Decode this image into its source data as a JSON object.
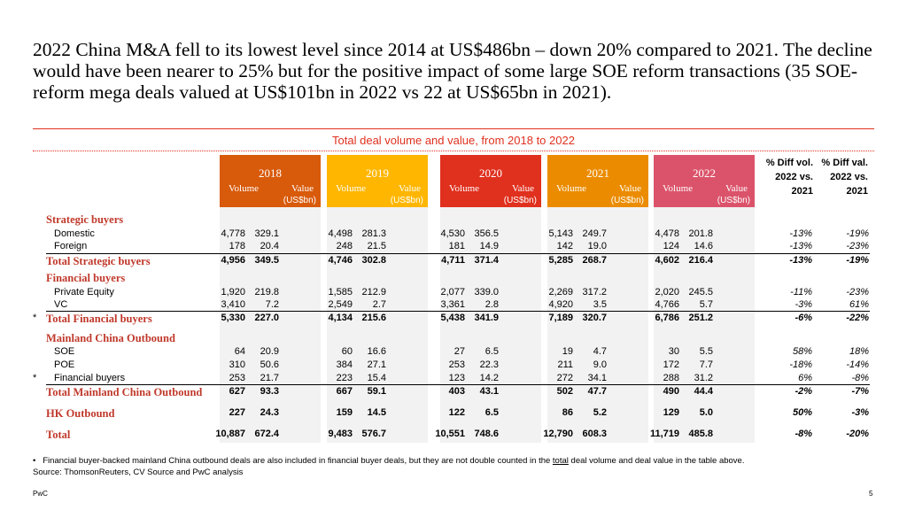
{
  "headline": "2022 China M&A fell to its lowest level since 2014 at US$486bn – down 20% compared to 2021. The decline would have been nearer to 25% but for the positive impact of some large SOE reform transactions (35 SOE-reform mega deals valued at US$101bn in 2022 vs 22 at US$65bn in 2021).",
  "subtitle": "Total deal volume and value, from 2018 to 2022",
  "columns": {
    "volume": "Volume",
    "value": "Value",
    "unit": "(US$bn)",
    "years": [
      "2018",
      "2019",
      "2020",
      "2021",
      "2022"
    ],
    "diff_vol": [
      "% Diff vol.",
      "2022 vs.",
      "2021"
    ],
    "diff_val": [
      "% Diff val.",
      "2022  vs.",
      "2021"
    ]
  },
  "colors": {
    "2018": "#d85a0b",
    "2019": "#ffb600",
    "2020": "#e0301e",
    "2021": "#eb8c00",
    "2022": "#db536a",
    "accent": "#e0301e",
    "label_red": "#c0392b"
  },
  "sections": {
    "strategic": "Strategic buyers",
    "financial": "Financial buyers",
    "outbound": "Mainland China Outbound"
  },
  "rows": {
    "domestic": {
      "label": "Domestic",
      "v": [
        "4,778",
        "329.1",
        "4,498",
        "281.3",
        "4,530",
        "356.5",
        "5,143",
        "249.7",
        "4,478",
        "201.8",
        "-13%",
        "-19%"
      ]
    },
    "foreign": {
      "label": "Foreign",
      "v": [
        "178",
        "20.4",
        "248",
        "21.5",
        "181",
        "14.9",
        "142",
        "19.0",
        "124",
        "14.6",
        "-13%",
        "-23%"
      ]
    },
    "total_strategic": {
      "label": "Total Strategic buyers",
      "v": [
        "4,956",
        "349.5",
        "4,746",
        "302.8",
        "4,711",
        "371.4",
        "5,285",
        "268.7",
        "4,602",
        "216.4",
        "-13%",
        "-19%"
      ]
    },
    "pe": {
      "label": "Private Equity",
      "v": [
        "1,920",
        "219.8",
        "1,585",
        "212.9",
        "2,077",
        "339.0",
        "2,269",
        "317.2",
        "2,020",
        "245.5",
        "-11%",
        "-23%"
      ]
    },
    "vc": {
      "label": "VC",
      "v": [
        "3,410",
        "7.2",
        "2,549",
        "2.7",
        "3,361",
        "2.8",
        "4,920",
        "3.5",
        "4,766",
        "5.7",
        "-3%",
        "61%"
      ]
    },
    "total_financial": {
      "star": "*",
      "label": "Total Financial buyers",
      "v": [
        "5,330",
        "227.0",
        "4,134",
        "215.6",
        "5,438",
        "341.9",
        "7,189",
        "320.7",
        "6,786",
        "251.2",
        "-6%",
        "-22%"
      ]
    },
    "soe": {
      "label": "SOE",
      "v": [
        "64",
        "20.9",
        "60",
        "16.6",
        "27",
        "6.5",
        "19",
        "4.7",
        "30",
        "5.5",
        "58%",
        "18%"
      ]
    },
    "poe": {
      "label": "POE",
      "v": [
        "310",
        "50.6",
        "384",
        "27.1",
        "253",
        "22.3",
        "211",
        "9.0",
        "172",
        "7.7",
        "-18%",
        "-14%"
      ]
    },
    "fin_buyers": {
      "star": "*",
      "label": "Financial buyers",
      "v": [
        "253",
        "21.7",
        "223",
        "15.4",
        "123",
        "14.2",
        "272",
        "34.1",
        "288",
        "31.2",
        "6%",
        "-8%"
      ]
    },
    "total_outbound": {
      "label": "Total Mainland China Outbound",
      "v": [
        "627",
        "93.3",
        "667",
        "59.1",
        "403",
        "43.1",
        "502",
        "47.7",
        "490",
        "44.4",
        "-2%",
        "-7%"
      ]
    },
    "hk": {
      "label": "HK Outbound",
      "v": [
        "227",
        "24.3",
        "159",
        "14.5",
        "122",
        "6.5",
        "86",
        "5.2",
        "129",
        "5.0",
        "50%",
        "-3%"
      ]
    },
    "total": {
      "label": "Total",
      "v": [
        "10,887",
        "672.4",
        "9,483",
        "576.7",
        "10,551",
        "748.6",
        "12,790",
        "608.3",
        "11,719",
        "485.8",
        "-8%",
        "-20%"
      ]
    }
  },
  "footnote": {
    "bullet": "•",
    "pre": "Financial buyer-backed mainland China outbound deals are also included in financial buyer deals, but they are not double counted in the",
    "underlined": "total",
    "post": "deal volume and deal value in the table above.",
    "source": "Source: ThomsonReuters, CV Source and PwC analysis"
  },
  "footer": {
    "brand": "PwC",
    "page": "5"
  }
}
